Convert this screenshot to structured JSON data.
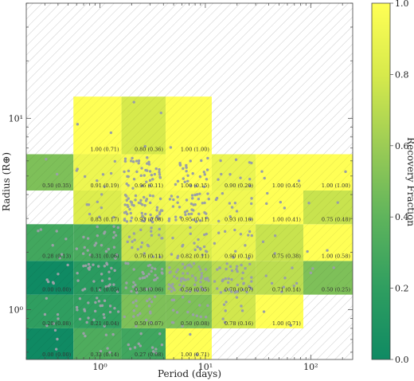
{
  "chart_data": {
    "type": "heatmap",
    "xlabel": "Period (days)",
    "ylabel": "Radius (R⊕)",
    "xscale": "log",
    "yscale": "log",
    "xlim": [
      0.2,
      250
    ],
    "ylim": [
      0.55,
      40
    ],
    "x_edges": [
      0.2,
      0.56,
      1.6,
      4.2,
      11.5,
      30,
      85,
      250
    ],
    "y_edges": [
      0.55,
      0.8,
      1.2,
      1.8,
      2.8,
      4.2,
      6.5,
      13,
      40
    ],
    "x_ticks": [
      {
        "value": 1,
        "label": "10⁰"
      },
      {
        "value": 10,
        "label": "10¹"
      },
      {
        "value": 100,
        "label": "10²"
      }
    ],
    "y_ticks": [
      {
        "value": 1,
        "label": "10⁰"
      },
      {
        "value": 10,
        "label": "10¹"
      }
    ],
    "colorbar": {
      "label": "Recovery Fraction",
      "range": [
        0,
        1
      ],
      "ticks": [
        "0.0",
        "0.2",
        "0.4",
        "0.6",
        "0.8",
        "1.0"
      ],
      "colors": [
        "#0f8a63",
        "#2f9e60",
        "#5fb45c",
        "#9ccc55",
        "#d7ea4c",
        "#ffff55"
      ]
    },
    "empty_cell_color": "#ffffff",
    "hatch_color": "#c8c8c8",
    "point_color": "#9aa0a6",
    "cells": [
      {
        "col": 0,
        "row": 0,
        "value": 0.0,
        "label": "0.00 (0.00)"
      },
      {
        "col": 1,
        "row": 0,
        "value": 0.33,
        "label": "0.33 (0.14)"
      },
      {
        "col": 2,
        "row": 0,
        "value": 0.27,
        "label": "0.27 (0.08)"
      },
      {
        "col": 3,
        "row": 0,
        "value": 1.0,
        "label": "1.00 (0.71)"
      },
      {
        "col": 0,
        "row": 1,
        "value": 0.2,
        "label": "0.20 (0.08)"
      },
      {
        "col": 1,
        "row": 1,
        "value": 0.21,
        "label": "0.21 (0.04)"
      },
      {
        "col": 2,
        "row": 1,
        "value": 0.5,
        "label": "0.50 (0.07)"
      },
      {
        "col": 3,
        "row": 1,
        "value": 0.5,
        "label": "0.50 (0.08)"
      },
      {
        "col": 4,
        "row": 1,
        "value": 0.78,
        "label": "0.78 (0.16)"
      },
      {
        "col": 5,
        "row": 1,
        "value": 1.0,
        "label": "1.00 (0.71)"
      },
      {
        "col": 0,
        "row": 2,
        "value": 0.0,
        "label": "0.00 (0.00)"
      },
      {
        "col": 1,
        "row": 2,
        "value": 0.17,
        "label": "0.17 (0.05)"
      },
      {
        "col": 2,
        "row": 2,
        "value": 0.38,
        "label": "0.38 (0.06)"
      },
      {
        "col": 3,
        "row": 2,
        "value": 0.59,
        "label": "0.59 (0.05)"
      },
      {
        "col": 4,
        "row": 2,
        "value": 0.7,
        "label": "0.70 (0.07)"
      },
      {
        "col": 5,
        "row": 2,
        "value": 0.71,
        "label": "0.71 (0.14)"
      },
      {
        "col": 6,
        "row": 2,
        "value": 0.5,
        "label": "0.50 (0.25)"
      },
      {
        "col": 0,
        "row": 3,
        "value": 0.28,
        "label": "0.28 (0.13)"
      },
      {
        "col": 1,
        "row": 3,
        "value": 0.31,
        "label": "0.31 (0.06)"
      },
      {
        "col": 2,
        "row": 3,
        "value": 0.76,
        "label": "0.76 (0.11)"
      },
      {
        "col": 3,
        "row": 3,
        "value": 0.82,
        "label": "0.82 (0.11)"
      },
      {
        "col": 4,
        "row": 3,
        "value": 0.9,
        "label": "0.90 (0.16)"
      },
      {
        "col": 5,
        "row": 3,
        "value": 0.75,
        "label": "0.75 (0.38)"
      },
      {
        "col": 6,
        "row": 3,
        "value": 1.0,
        "label": "1.00 (0.58)"
      },
      {
        "col": 1,
        "row": 4,
        "value": 0.83,
        "label": "0.83 (0.17)"
      },
      {
        "col": 2,
        "row": 4,
        "value": 0.93,
        "label": "0.93 (0.08)"
      },
      {
        "col": 3,
        "row": 4,
        "value": 0.95,
        "label": "0.95 (0.11)"
      },
      {
        "col": 4,
        "row": 4,
        "value": 0.93,
        "label": "0.93 (0.16)"
      },
      {
        "col": 5,
        "row": 4,
        "value": 1.0,
        "label": "1.00 (0.41)"
      },
      {
        "col": 6,
        "row": 4,
        "value": 0.75,
        "label": "0.75 (0.48)"
      },
      {
        "col": 0,
        "row": 5,
        "value": 0.5,
        "label": "0.50 (0.35)"
      },
      {
        "col": 1,
        "row": 5,
        "value": 0.91,
        "label": "0.91 (0.19)"
      },
      {
        "col": 2,
        "row": 5,
        "value": 0.96,
        "label": "0.96 (0.11)"
      },
      {
        "col": 3,
        "row": 5,
        "value": 1.0,
        "label": "1.00 (0.15)"
      },
      {
        "col": 4,
        "row": 5,
        "value": 0.9,
        "label": "0.90 (0.20)"
      },
      {
        "col": 5,
        "row": 5,
        "value": 1.0,
        "label": "1.00 (0.45)"
      },
      {
        "col": 6,
        "row": 5,
        "value": 1.0,
        "label": "1.00 (1.00)"
      },
      {
        "col": 1,
        "row": 6,
        "value": 1.0,
        "label": "1.00 (0.71)"
      },
      {
        "col": 2,
        "row": 6,
        "value": 0.8,
        "label": "0.80 (0.36)"
      },
      {
        "col": 3,
        "row": 6,
        "value": 1.0,
        "label": "1.00 (1.00)"
      }
    ],
    "scatter_density": [
      {
        "col": 0,
        "row": 0,
        "n": 3
      },
      {
        "col": 1,
        "row": 0,
        "n": 7
      },
      {
        "col": 2,
        "row": 0,
        "n": 12
      },
      {
        "col": 3,
        "row": 0,
        "n": 2
      },
      {
        "col": 0,
        "row": 1,
        "n": 6
      },
      {
        "col": 1,
        "row": 1,
        "n": 24
      },
      {
        "col": 2,
        "row": 1,
        "n": 18
      },
      {
        "col": 3,
        "row": 1,
        "n": 16
      },
      {
        "col": 4,
        "row": 1,
        "n": 8
      },
      {
        "col": 5,
        "row": 1,
        "n": 2
      },
      {
        "col": 0,
        "row": 2,
        "n": 6
      },
      {
        "col": 1,
        "row": 2,
        "n": 28
      },
      {
        "col": 2,
        "row": 2,
        "n": 32
      },
      {
        "col": 3,
        "row": 2,
        "n": 55
      },
      {
        "col": 4,
        "row": 2,
        "n": 40
      },
      {
        "col": 5,
        "row": 2,
        "n": 8
      },
      {
        "col": 6,
        "row": 2,
        "n": 3
      },
      {
        "col": 0,
        "row": 3,
        "n": 7
      },
      {
        "col": 1,
        "row": 3,
        "n": 24
      },
      {
        "col": 2,
        "row": 3,
        "n": 22
      },
      {
        "col": 3,
        "row": 3,
        "n": 20
      },
      {
        "col": 4,
        "row": 3,
        "n": 12
      },
      {
        "col": 5,
        "row": 3,
        "n": 3
      },
      {
        "col": 6,
        "row": 3,
        "n": 2
      },
      {
        "col": 1,
        "row": 4,
        "n": 8
      },
      {
        "col": 2,
        "row": 4,
        "n": 55
      },
      {
        "col": 3,
        "row": 4,
        "n": 40
      },
      {
        "col": 4,
        "row": 4,
        "n": 12
      },
      {
        "col": 5,
        "row": 4,
        "n": 4
      },
      {
        "col": 6,
        "row": 4,
        "n": 2
      },
      {
        "col": 0,
        "row": 5,
        "n": 2
      },
      {
        "col": 1,
        "row": 5,
        "n": 8
      },
      {
        "col": 2,
        "row": 5,
        "n": 40
      },
      {
        "col": 3,
        "row": 5,
        "n": 25
      },
      {
        "col": 4,
        "row": 5,
        "n": 10
      },
      {
        "col": 5,
        "row": 5,
        "n": 3
      },
      {
        "col": 6,
        "row": 5,
        "n": 1
      },
      {
        "col": 1,
        "row": 6,
        "n": 2
      },
      {
        "col": 2,
        "row": 6,
        "n": 3
      },
      {
        "col": 3,
        "row": 6,
        "n": 1
      }
    ]
  }
}
